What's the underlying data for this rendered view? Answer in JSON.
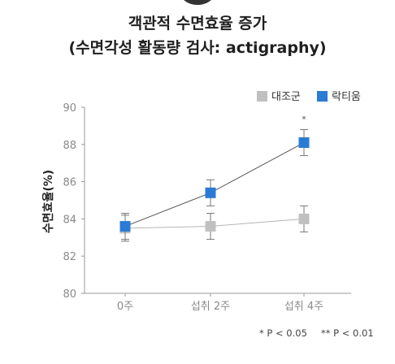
{
  "chart_data": {
    "type": "line",
    "title": "객관적 수면효율 증가",
    "subtitle": "(수면각성 활동량 검사: actigraphy)",
    "xlabel": "",
    "ylabel": "수면효율(%)",
    "categories": [
      "0주",
      "섭취 2주",
      "섭취 4주"
    ],
    "ylim": [
      80,
      90
    ],
    "yticks": [
      "80",
      "82",
      "84",
      "86",
      "88",
      "90"
    ],
    "legend_position": "top-right",
    "series": [
      {
        "name": "대조군",
        "color": "#c0c0c0",
        "values": [
          83.5,
          83.6,
          84.0
        ],
        "errors": [
          0.7,
          0.7,
          0.7
        ]
      },
      {
        "name": "락티움",
        "color": "#2a7bd4",
        "values": [
          83.6,
          85.4,
          88.1
        ],
        "errors": [
          0.7,
          0.7,
          0.7
        ]
      }
    ],
    "annotations": [
      {
        "text": "*",
        "category": "섭취 4주",
        "series": "락티움"
      }
    ],
    "footnote": {
      "p05": "* P < 0.05",
      "p01": "** P < 0.01"
    }
  }
}
